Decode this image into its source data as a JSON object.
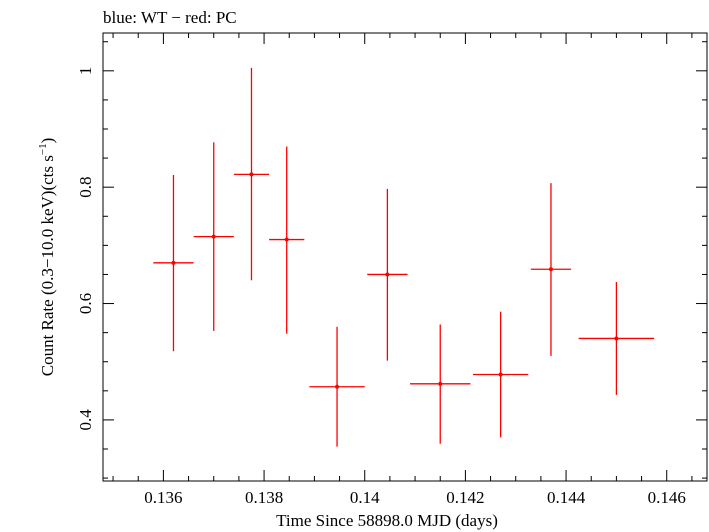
{
  "chart_data": {
    "type": "scatter",
    "title": "blue: WT − red: PC",
    "xlabel": "Time Since 58898.0 MJD (days)",
    "ylabel_main": "Count Rate (0.3−10.0 keV)(cts s",
    "ylabel_sup": "−1",
    "ylabel_close": ")",
    "xlim": [
      0.1348,
      0.1468
    ],
    "ylim": [
      0.295,
      1.065
    ],
    "x_ticks_major": [
      0.136,
      0.138,
      0.14,
      0.142,
      0.144,
      0.146
    ],
    "x_tick_labels": [
      "0.136",
      "0.138",
      "0.14",
      "0.142",
      "0.144",
      "0.146"
    ],
    "x_ticks_minor_step": 0.0005,
    "y_ticks_major": [
      0.4,
      0.6,
      0.8,
      1.0
    ],
    "y_tick_labels": [
      "0.4",
      "0.6",
      "0.8",
      "1"
    ],
    "y_ticks_minor_step": 0.05,
    "grid": false,
    "series": [
      {
        "name": "PC",
        "color": "#ff0000",
        "points": [
          {
            "x": 0.1362,
            "y": 0.67,
            "xerr": 0.0004,
            "yerr_low": 0.152,
            "yerr_high": 0.151
          },
          {
            "x": 0.137,
            "y": 0.715,
            "xerr": 0.0004,
            "yerr_low": 0.162,
            "yerr_high": 0.162
          },
          {
            "x": 0.13775,
            "y": 0.822,
            "xerr": 0.00035,
            "yerr_low": 0.182,
            "yerr_high": 0.183
          },
          {
            "x": 0.13845,
            "y": 0.71,
            "xerr": 0.00035,
            "yerr_low": 0.162,
            "yerr_high": 0.16
          },
          {
            "x": 0.13945,
            "y": 0.457,
            "xerr": 0.00055,
            "yerr_low": 0.103,
            "yerr_high": 0.103
          },
          {
            "x": 0.14045,
            "y": 0.65,
            "xerr": 0.0004,
            "yerr_low": 0.148,
            "yerr_high": 0.147
          },
          {
            "x": 0.1415,
            "y": 0.462,
            "xerr": 0.0006,
            "yerr_low": 0.103,
            "yerr_high": 0.102
          },
          {
            "x": 0.1427,
            "y": 0.478,
            "xerr": 0.00055,
            "yerr_low": 0.108,
            "yerr_high": 0.108
          },
          {
            "x": 0.1437,
            "y": 0.659,
            "xerr": 0.0004,
            "yerr_low": 0.149,
            "yerr_high": 0.148
          },
          {
            "x": 0.145,
            "y": 0.54,
            "xerr": 0.00075,
            "yerr_low": 0.097,
            "yerr_high": 0.097
          }
        ]
      }
    ]
  }
}
